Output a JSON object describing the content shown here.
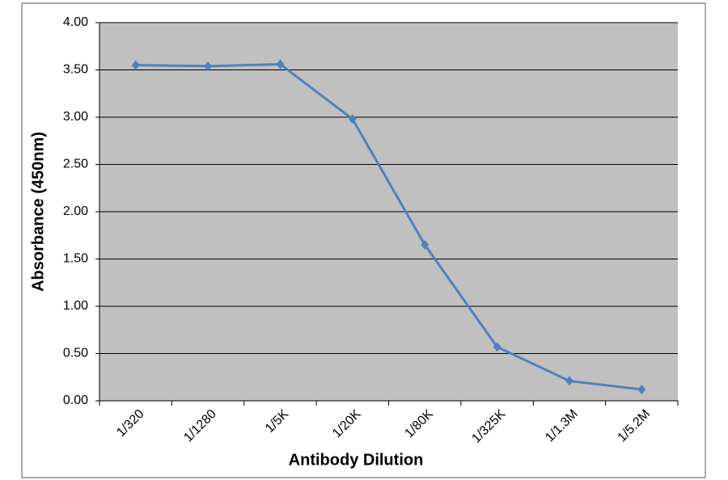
{
  "chart_data": {
    "type": "line",
    "x_label": "Antibody Dilution",
    "y_label": "Absorbance (450nm)",
    "categories": [
      "1/320",
      "1/1280",
      "1/5K",
      "1/20K",
      "1/80K",
      "1/325K",
      "1/1.3M",
      "1/5.2M"
    ],
    "series": [
      {
        "name": "Absorbance",
        "color": "#4f81bd",
        "values": [
          3.55,
          3.54,
          3.56,
          2.98,
          1.65,
          0.57,
          0.21,
          0.12
        ]
      }
    ],
    "ylim": [
      0,
      4
    ],
    "yticks": [
      {
        "value": 0,
        "label": "0.00"
      },
      {
        "value": 0.5,
        "label": "0.50"
      },
      {
        "value": 1,
        "label": "1.00"
      },
      {
        "value": 1.5,
        "label": "1.50"
      },
      {
        "value": 2,
        "label": "2.00"
      },
      {
        "value": 2.5,
        "label": "2.50"
      },
      {
        "value": 3,
        "label": "3.00"
      },
      {
        "value": 3.5,
        "label": "3.50"
      },
      {
        "value": 4,
        "label": "4.00"
      }
    ],
    "grid": true,
    "plot_background": "#c0c0c0"
  }
}
